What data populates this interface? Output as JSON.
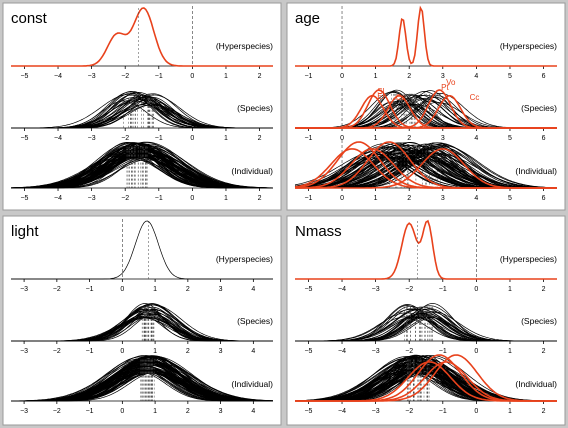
{
  "chart_data": [
    {
      "type": "density",
      "title": "const",
      "xlim": [
        -5.4,
        2.4
      ],
      "ticks": [
        -5,
        -4,
        -3,
        -2,
        -1,
        0,
        1,
        2
      ],
      "row_labels": [
        "(Hyperspecies)",
        "(Species)",
        "(Individual)"
      ],
      "colors": {
        "accent": "#e8421c",
        "curves": "#000000"
      },
      "rows": [
        {
          "name": "Hyperspecies",
          "color": "red",
          "means": [
            -2.25,
            -1.45
          ],
          "sds": [
            0.28,
            0.3
          ],
          "weights": [
            0.35,
            0.65
          ],
          "count": 1,
          "mean_lines": [
            -1.6
          ],
          "zero_line": true
        },
        {
          "name": "Species",
          "color": "black",
          "center": -1.6,
          "spread": 0.45,
          "sd": 0.7,
          "count": 30,
          "zero_line": false
        },
        {
          "name": "Individual",
          "color": "black",
          "center": -1.6,
          "spread": 0.35,
          "sd": 0.95,
          "count": 80,
          "zero_line": false
        }
      ]
    },
    {
      "type": "density",
      "title": "age",
      "xlim": [
        -1.4,
        6.4
      ],
      "ticks": [
        -1,
        0,
        1,
        2,
        3,
        4,
        5,
        6
      ],
      "row_labels": [
        "(Hyperspecies)",
        "(Species)",
        "(Individual)"
      ],
      "annotations": [
        "Sl",
        "El",
        "Cs",
        "Vo",
        "Pt",
        "Cc"
      ],
      "colors": {
        "accent": "#e8421c",
        "curves": "#000000"
      },
      "rows": [
        {
          "name": "Hyperspecies",
          "color": "red",
          "means": [
            1.8,
            2.35
          ],
          "sds": [
            0.1,
            0.1
          ],
          "weights": [
            0.45,
            0.55
          ],
          "count": 1,
          "mean_lines": [],
          "zero_line": true
        },
        {
          "name": "Species",
          "color": "mixed",
          "center": 2.2,
          "spread": 0.75,
          "sd": 0.6,
          "count": 30,
          "red_means": [
            0.9,
            1.1,
            1.7,
            2.9,
            3.2
          ],
          "zero_line": true
        },
        {
          "name": "Individual",
          "color": "mixed",
          "center": 2.0,
          "spread": 1.0,
          "sd": 0.9,
          "count": 80,
          "red_means": [
            0.3,
            0.5,
            0.9,
            1.4,
            3.0
          ],
          "zero_line": true
        }
      ]
    },
    {
      "type": "density",
      "title": "light",
      "xlim": [
        -3.4,
        4.6
      ],
      "ticks": [
        -3,
        -2,
        -1,
        0,
        1,
        2,
        3,
        4
      ],
      "row_labels": [
        "(Hyperspecies)",
        "(Species)",
        "(Individual)"
      ],
      "colors": {
        "accent": "#e8421c",
        "curves": "#000000"
      },
      "rows": [
        {
          "name": "Hyperspecies",
          "color": "black",
          "means": [
            0.75
          ],
          "sds": [
            0.35
          ],
          "weights": [
            1
          ],
          "count": 1,
          "mean_lines": [
            0.8
          ],
          "zero_line": true
        },
        {
          "name": "Species",
          "color": "black",
          "center": 0.8,
          "spread": 0.2,
          "sd": 0.7,
          "count": 30,
          "zero_line": false
        },
        {
          "name": "Individual",
          "color": "black",
          "center": 0.8,
          "spread": 0.25,
          "sd": 0.95,
          "count": 80,
          "zero_line": false
        }
      ]
    },
    {
      "type": "density",
      "title": "Nmass",
      "xlim": [
        -5.4,
        2.4
      ],
      "ticks": [
        -5,
        -4,
        -3,
        -2,
        -1,
        0,
        1,
        2
      ],
      "row_labels": [
        "(Hyperspecies)",
        "(Species)",
        "(Individual)"
      ],
      "colors": {
        "accent": "#e8421c",
        "curves": "#000000"
      },
      "rows": [
        {
          "name": "Hyperspecies",
          "color": "red",
          "means": [
            -2.0,
            -1.45
          ],
          "sds": [
            0.22,
            0.15
          ],
          "weights": [
            0.5,
            0.5
          ],
          "count": 1,
          "mean_lines": [
            -1.75
          ],
          "zero_line": true
        },
        {
          "name": "Species",
          "color": "black",
          "center": -1.7,
          "spread": 0.45,
          "sd": 0.65,
          "count": 30,
          "zero_line": false
        },
        {
          "name": "Individual",
          "color": "mixed",
          "center": -1.7,
          "spread": 0.4,
          "sd": 0.9,
          "count": 80,
          "red_means": [
            -1.4,
            -1.1,
            -0.9,
            -0.6
          ],
          "zero_line": false
        }
      ]
    }
  ]
}
